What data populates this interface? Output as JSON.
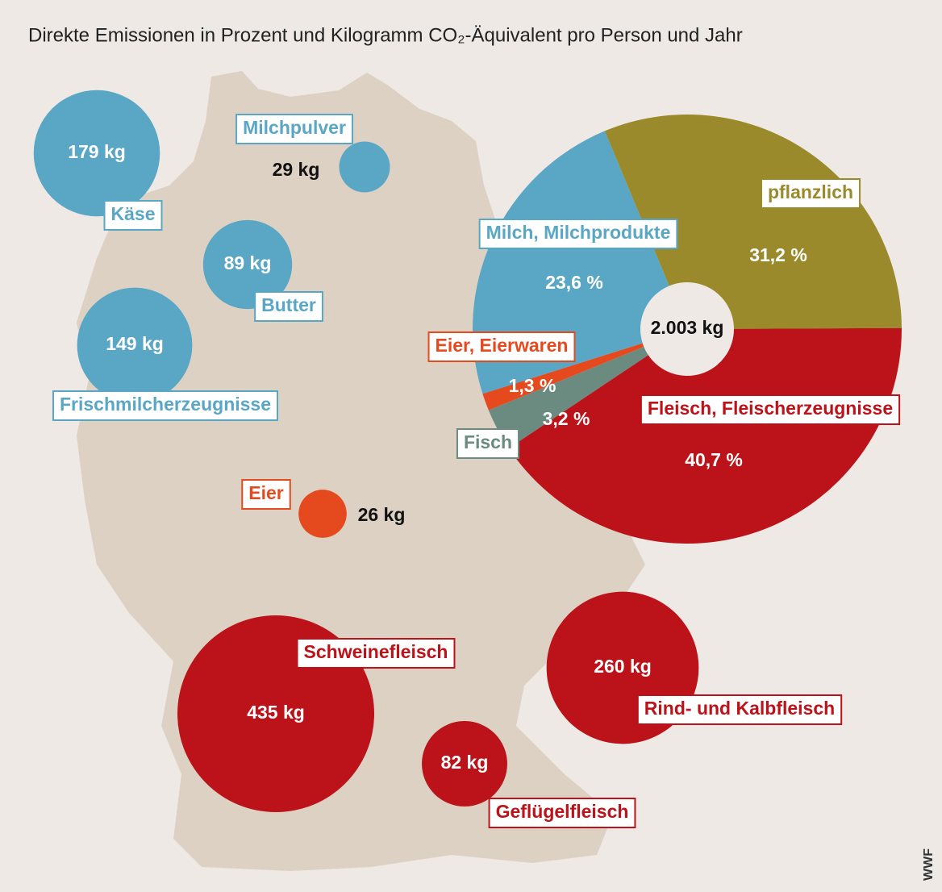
{
  "title": "Direkte Emissionen in Prozent und Kilogramm CO₂-Äquivalent pro Person und Jahr",
  "source": "WWF",
  "chart_data": [
    {
      "type": "pie",
      "categories": [
        "pflanzlich",
        "Fleisch, Fleischerzeugnisse",
        "Fisch",
        "Eier, Eierwaren",
        "Milch, Milchprodukte"
      ],
      "values": [
        31.2,
        40.7,
        3.2,
        1.3,
        23.6
      ],
      "value_labels": [
        "31,2 %",
        "40,7 %",
        "3,2 %",
        "1,3 %",
        "23,6 %"
      ],
      "colors": [
        "#9a8a2c",
        "#bb1319",
        "#6b8b80",
        "#e54a1f",
        "#5aa6c5"
      ],
      "total_label": "2.003 kg"
    },
    {
      "type": "bubble",
      "categories": [
        "Käse",
        "Milchpulver",
        "Butter",
        "Frischmilcherzeugnisse",
        "Eier",
        "Schweinefleisch",
        "Rind- und Kalbfleisch",
        "Geflügelfleisch"
      ],
      "values": [
        179,
        29,
        89,
        149,
        26,
        435,
        260,
        82
      ],
      "value_labels": [
        "179 kg",
        "29 kg",
        "89 kg",
        "149 kg",
        "26 kg",
        "435 kg",
        "260 kg",
        "82 kg"
      ],
      "colors": [
        "#5aa6c5",
        "#5aa6c5",
        "#5aa6c5",
        "#5aa6c5",
        "#e54a1f",
        "#bb1319",
        "#bb1319",
        "#bb1319"
      ]
    }
  ]
}
